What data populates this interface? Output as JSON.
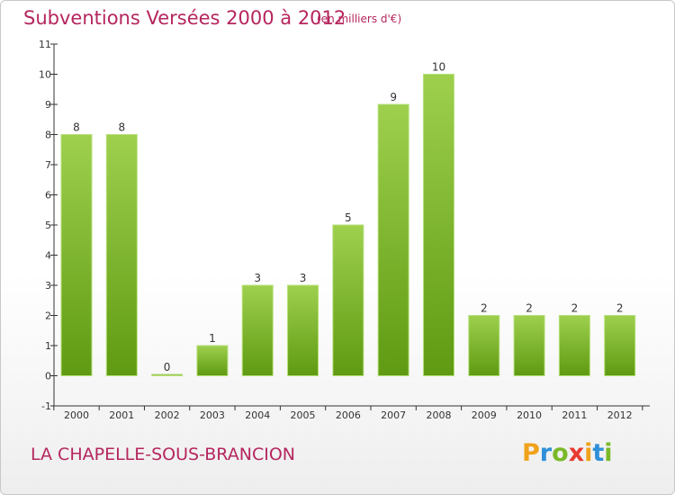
{
  "header": {
    "title": "Subventions Versées 2000 à 2012",
    "subtitle": "(en milliers d'€)"
  },
  "footer": {
    "commune": "LA CHAPELLE-SOUS-BRANCION",
    "logo_letters": [
      "P",
      "r",
      "o",
      "x",
      "i",
      "t",
      "i"
    ],
    "logo_colors": [
      "#f0a21a",
      "#2f8fd8",
      "#79b928",
      "#e83a30",
      "#f0a21a",
      "#2f8fd8",
      "#79b928"
    ]
  },
  "colors": {
    "bar_top": "#9ed04e",
    "bar_bottom": "#5f9a12",
    "axis": "#333333",
    "accent": "#b5265e"
  },
  "chart_data": {
    "type": "bar",
    "categories": [
      "2000",
      "2001",
      "2002",
      "2003",
      "2004",
      "2005",
      "2006",
      "2007",
      "2008",
      "2009",
      "2010",
      "2011",
      "2012"
    ],
    "values": [
      8,
      8,
      0,
      1,
      3,
      3,
      5,
      9,
      10,
      2,
      2,
      2,
      2
    ],
    "yticks": [
      "-1",
      "0",
      "1",
      "2",
      "3",
      "4",
      "5",
      "6",
      "7",
      "8",
      "9",
      "10",
      "11"
    ],
    "ylim": [
      -1,
      11
    ],
    "grid": false,
    "legend": "none"
  }
}
